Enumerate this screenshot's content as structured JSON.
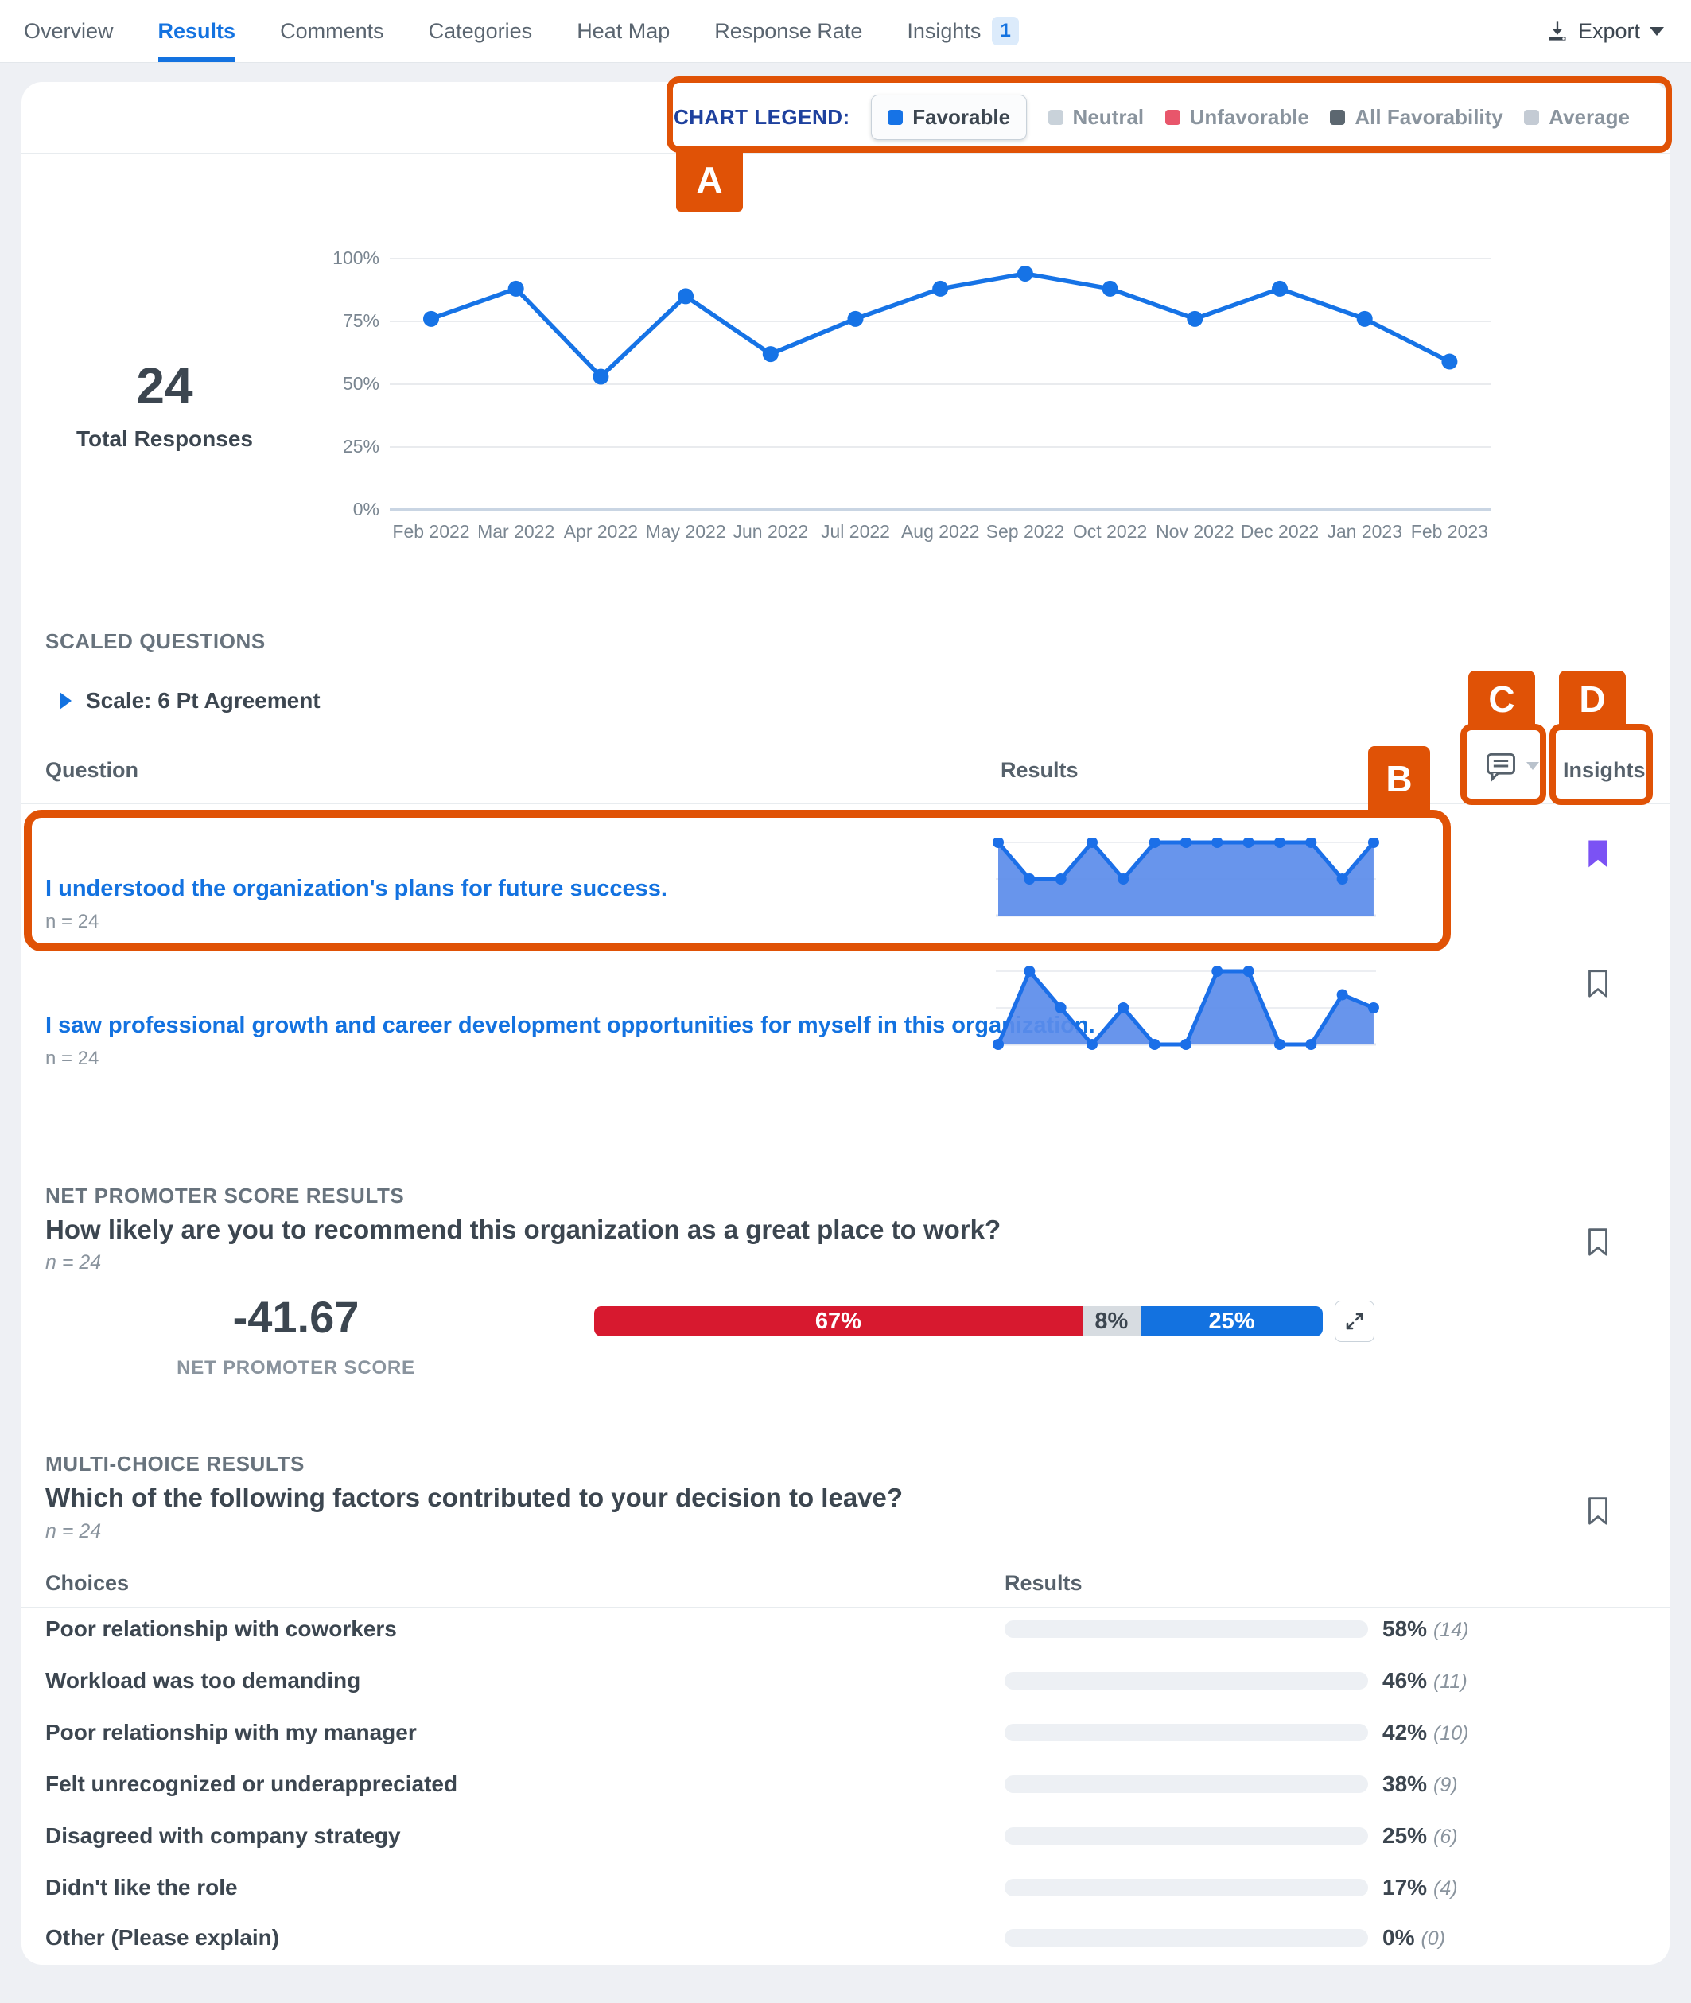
{
  "nav": {
    "tabs": [
      {
        "label": "Overview",
        "active": false
      },
      {
        "label": "Results",
        "active": true
      },
      {
        "label": "Comments",
        "active": false
      },
      {
        "label": "Categories",
        "active": false
      },
      {
        "label": "Heat Map",
        "active": false
      },
      {
        "label": "Response Rate",
        "active": false
      },
      {
        "label": "Insights",
        "active": false
      }
    ],
    "insights_badge": "1",
    "export_label": "Export"
  },
  "legend": {
    "title": "CHART LEGEND:",
    "items": [
      {
        "label": "Favorable",
        "color": "#1673E6",
        "selected": true
      },
      {
        "label": "Neutral",
        "color": "#C9D2DA",
        "selected": false
      },
      {
        "label": "Unfavorable",
        "color": "#E8566B",
        "selected": false
      },
      {
        "label": "All Favorability",
        "color": "#5C6770",
        "selected": false
      },
      {
        "label": "Average",
        "color": "#C4CBD4",
        "selected": false
      }
    ]
  },
  "trend": {
    "total_value": "24",
    "total_label": "Total Responses"
  },
  "chart_data": [
    {
      "id": "favorable-trend",
      "type": "line",
      "x": [
        "Feb 2022",
        "Mar 2022",
        "Apr 2022",
        "May 2022",
        "Jun 2022",
        "Jul 2022",
        "Aug 2022",
        "Sep 2022",
        "Oct 2022",
        "Nov 2022",
        "Dec 2022",
        "Jan 2023",
        "Feb 2023"
      ],
      "values": [
        76,
        88,
        53,
        85,
        62,
        76,
        88,
        94,
        88,
        76,
        88,
        76,
        59
      ],
      "ylim": [
        0,
        100
      ],
      "yticks": [
        "100%",
        "75%",
        "50%",
        "25%",
        "0%"
      ],
      "color": "#1673E6",
      "grid": true
    },
    {
      "id": "q1-sparkline",
      "type": "area",
      "question": "I understood the organization's plans for future success.",
      "values": [
        100,
        50,
        50,
        100,
        50,
        100,
        100,
        100,
        100,
        100,
        100,
        50,
        100
      ],
      "ylim": [
        0,
        100
      ],
      "color": "#1B6FE8",
      "fill": "#5B8CEA"
    },
    {
      "id": "q2-sparkline",
      "type": "area",
      "question": "I saw professional growth and career development opportunities for myself in this organization.",
      "values": [
        0,
        100,
        50,
        0,
        50,
        0,
        0,
        100,
        100,
        0,
        0,
        68,
        50
      ],
      "ylim": [
        0,
        100
      ],
      "color": "#1B6FE8",
      "fill": "#5B8CEA"
    },
    {
      "id": "nps-stacked-bar",
      "type": "bar",
      "stacked": true,
      "score": -41.67,
      "segments": [
        {
          "label": "67%",
          "value": 67,
          "color": "#D7192F",
          "text_color": "#FFFFFF"
        },
        {
          "label": "8%",
          "value": 8,
          "color": "#D7DCE1",
          "text_color": "#3C4650"
        },
        {
          "label": "25%",
          "value": 25,
          "color": "#1372E0",
          "text_color": "#FFFFFF"
        }
      ]
    },
    {
      "id": "multi-choice-bars",
      "type": "bar",
      "categories": [
        "Poor relationship with coworkers",
        "Workload was too demanding",
        "Poor relationship with my manager",
        "Felt unrecognized or underappreciated",
        "Disagreed with company strategy",
        "Didn't like the role",
        "Other (Please explain)"
      ],
      "values": [
        58,
        46,
        42,
        38,
        25,
        17,
        0
      ],
      "counts": [
        14,
        11,
        10,
        9,
        6,
        4,
        0
      ],
      "color": "#93A2B4"
    }
  ],
  "scaled": {
    "section_title": "SCALED QUESTIONS",
    "scale_label": "Scale: 6 Pt Agreement",
    "col_question": "Question",
    "col_results": "Results",
    "col_insights": "Insights",
    "questions": [
      {
        "text": "I understood the organization's plans for future success.",
        "n": "n = 24",
        "bookmarked": true
      },
      {
        "text": "I saw professional growth and career development opportunities for myself in this organization.",
        "n": "n = 24",
        "bookmarked": false
      }
    ]
  },
  "nps": {
    "section_title": "NET PROMOTER SCORE RESULTS",
    "question": "How likely are you to recommend this organization as a great place to work?",
    "n": "n = 24",
    "score": "-41.67",
    "score_label": "NET PROMOTER SCORE",
    "segments": [
      {
        "label": "67%"
      },
      {
        "label": "8%"
      },
      {
        "label": "25%"
      }
    ]
  },
  "multi": {
    "section_title": "MULTI-CHOICE RESULTS",
    "question": "Which of the following factors contributed to your decision to leave?",
    "n": "n = 24",
    "col_choices": "Choices",
    "col_results": "Results",
    "rows": [
      {
        "label": "Poor relationship with coworkers",
        "pct": 58,
        "pct_label": "58%",
        "count_label": "(14)"
      },
      {
        "label": "Workload was too demanding",
        "pct": 46,
        "pct_label": "46%",
        "count_label": "(11)"
      },
      {
        "label": "Poor relationship with my manager",
        "pct": 42,
        "pct_label": "42%",
        "count_label": "(10)"
      },
      {
        "label": "Felt unrecognized or underappreciated",
        "pct": 38,
        "pct_label": "38%",
        "count_label": "(9)"
      },
      {
        "label": "Disagreed with company strategy",
        "pct": 25,
        "pct_label": "25%",
        "count_label": "(6)"
      },
      {
        "label": "Didn't like the role",
        "pct": 17,
        "pct_label": "17%",
        "count_label": "(4)"
      },
      {
        "label": "Other (Please explain)",
        "pct": 0,
        "pct_label": "0%",
        "count_label": "(0)"
      }
    ]
  },
  "annotations": {
    "a": "A",
    "b": "B",
    "c": "C",
    "d": "D",
    "color": "#E05206",
    "bookmark_color": "#7B52F4"
  }
}
